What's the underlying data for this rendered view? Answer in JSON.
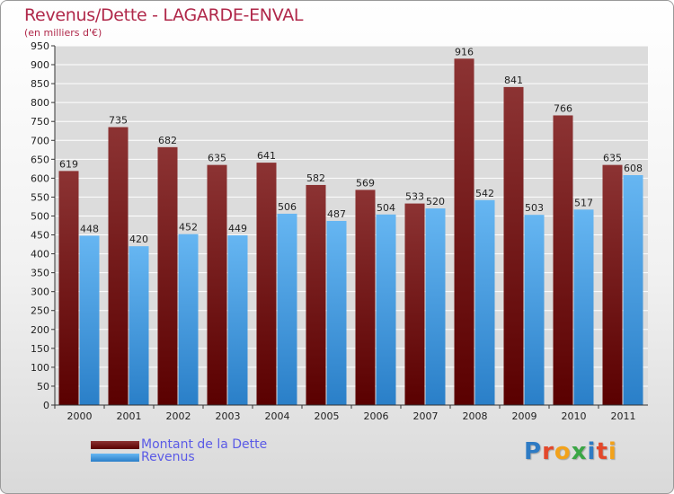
{
  "title": "Revenus/Dette - LAGARDE-ENVAL",
  "subtitle": "(en milliers d'€)",
  "logo": {
    "letters": [
      {
        "ch": "P",
        "color": "#2e7bc4"
      },
      {
        "ch": "r",
        "color": "#e3482b"
      },
      {
        "ch": "o",
        "color": "#f2a21b"
      },
      {
        "ch": "x",
        "color": "#3aa645"
      },
      {
        "ch": "i",
        "color": "#2e7bc4"
      },
      {
        "ch": "t",
        "color": "#e3482b"
      },
      {
        "ch": "i",
        "color": "#f2a21b"
      }
    ]
  },
  "colors": {
    "dette_top": "#8c3333",
    "dette_bottom": "#5a0000",
    "revenus_top": "#66b6f2",
    "revenus_bottom": "#2a7fc8",
    "grid": "#ffffff",
    "axis": "#333333",
    "plot_bg": "#dcdcdc"
  },
  "chart_data": {
    "type": "bar",
    "categories": [
      "2000",
      "2001",
      "2002",
      "2003",
      "2004",
      "2005",
      "2006",
      "2007",
      "2008",
      "2009",
      "2010",
      "2011"
    ],
    "series": [
      {
        "name": "Montant de la Dette",
        "values": [
          619,
          735,
          682,
          635,
          641,
          582,
          569,
          533,
          916,
          841,
          766,
          635
        ]
      },
      {
        "name": "Revenus",
        "values": [
          448,
          420,
          452,
          449,
          506,
          487,
          504,
          520,
          542,
          503,
          517,
          608
        ]
      }
    ],
    "ylim": [
      0,
      950
    ],
    "yticks": [
      0,
      50,
      100,
      150,
      200,
      250,
      300,
      350,
      400,
      450,
      500,
      550,
      600,
      650,
      700,
      750,
      800,
      850,
      900,
      950
    ],
    "grid": true,
    "legend_position": "bottom-left"
  }
}
